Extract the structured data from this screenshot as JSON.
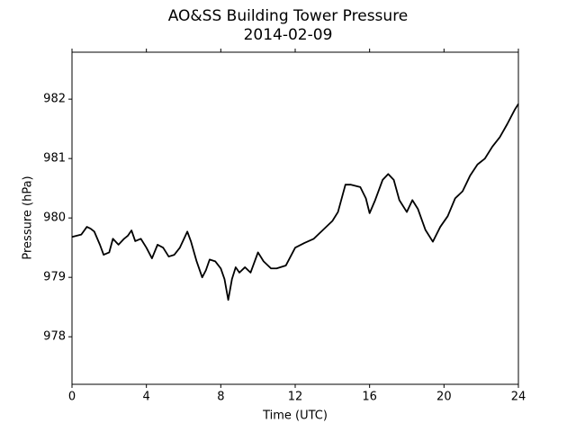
{
  "chart_data": {
    "type": "line",
    "title": "AO&SS Building Tower Pressure",
    "subtitle": "2014-02-09",
    "x_label": "Time (UTC)",
    "y_label": "Pressure (hPa)",
    "x": [
      0,
      0.5,
      0.8,
      1.0,
      1.2,
      1.5,
      1.7,
      2.0,
      2.2,
      2.5,
      2.8,
      3.0,
      3.2,
      3.4,
      3.7,
      4.0,
      4.3,
      4.6,
      4.9,
      5.2,
      5.5,
      5.8,
      6.2,
      6.4,
      6.7,
      7.0,
      7.2,
      7.4,
      7.7,
      8.0,
      8.2,
      8.4,
      8.6,
      8.8,
      9.0,
      9.3,
      9.6,
      10.0,
      10.3,
      10.7,
      11.0,
      11.5,
      12.0,
      12.5,
      13.0,
      13.5,
      14.0,
      14.3,
      14.7,
      15.0,
      15.5,
      15.8,
      16.0,
      16.3,
      16.7,
      17.0,
      17.3,
      17.6,
      18.0,
      18.3,
      18.6,
      19.0,
      19.4,
      19.8,
      20.2,
      20.6,
      21.0,
      21.4,
      21.8,
      22.2,
      22.6,
      23.0,
      23.4,
      23.8,
      24.0
    ],
    "series": [
      {
        "name": "Pressure",
        "color": "#000000",
        "values": [
          979.68,
          979.72,
          979.85,
          979.82,
          979.77,
          979.55,
          979.38,
          979.42,
          979.65,
          979.55,
          979.65,
          979.7,
          979.79,
          979.61,
          979.65,
          979.5,
          979.32,
          979.55,
          979.5,
          979.35,
          979.38,
          979.5,
          979.77,
          979.6,
          979.27,
          979.0,
          979.12,
          979.3,
          979.27,
          979.15,
          978.97,
          978.62,
          978.97,
          979.17,
          979.08,
          979.17,
          979.08,
          979.42,
          979.27,
          979.15,
          979.15,
          979.2,
          979.5,
          979.58,
          979.65,
          979.8,
          979.95,
          980.1,
          980.56,
          980.56,
          980.52,
          980.33,
          980.08,
          980.3,
          980.64,
          980.74,
          980.64,
          980.3,
          980.1,
          980.3,
          980.15,
          979.8,
          979.6,
          979.85,
          980.03,
          980.33,
          980.45,
          980.71,
          980.9,
          981.0,
          981.2,
          981.36,
          981.58,
          981.82,
          981.92
        ]
      }
    ],
    "xlim": [
      0,
      24
    ],
    "xticks": [
      0,
      4,
      8,
      12,
      16,
      20,
      24
    ],
    "ylim": [
      977.2,
      982.79
    ],
    "yticks": [
      978,
      979,
      980,
      981,
      982
    ],
    "grid": false
  }
}
